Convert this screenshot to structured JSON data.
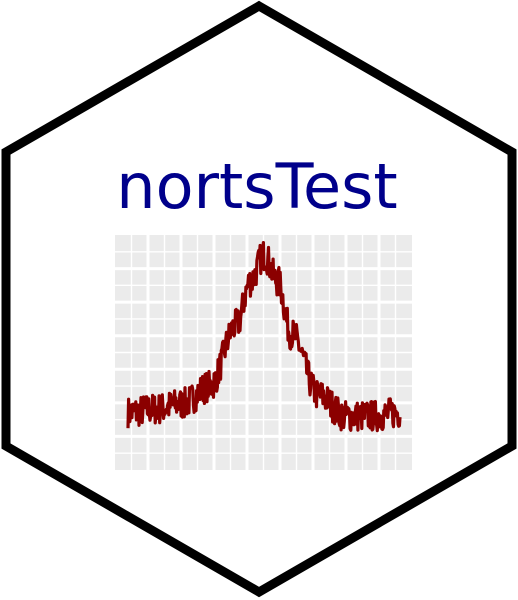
{
  "logo": {
    "title": "nortsTest",
    "colors": {
      "hex_border": "#000000",
      "hex_fill": "#ffffff",
      "title": "#00008b",
      "plot_background": "#ebebeb",
      "grid": "#ffffff",
      "line": "#8b0000"
    }
  },
  "chart_data": {
    "type": "line",
    "title": "",
    "xlabel": "",
    "ylabel": "",
    "grid": true,
    "series": [
      {
        "color": "#8b0000",
        "shape": "noisy bell-shaped peak",
        "x": [
          0,
          10,
          20,
          30,
          40,
          45,
          50,
          55,
          60,
          70,
          80,
          90,
          100
        ],
        "y": [
          0.1,
          0.12,
          0.15,
          0.25,
          0.6,
          0.85,
          1.0,
          0.85,
          0.55,
          0.2,
          0.08,
          0.08,
          0.1
        ]
      }
    ]
  }
}
